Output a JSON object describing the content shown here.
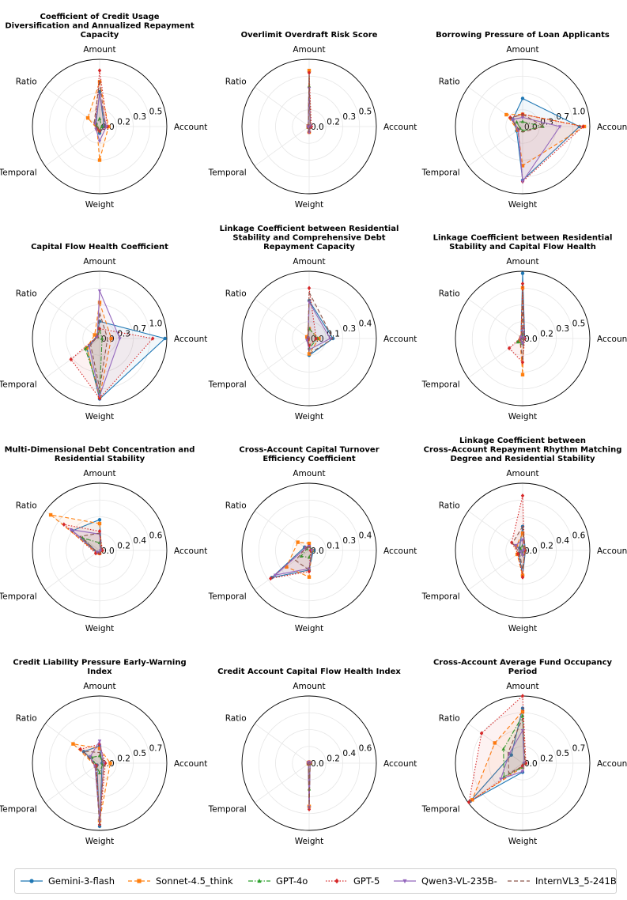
{
  "legend": {
    "series": [
      {
        "name": "Gemini-3-flash",
        "color": "#1f77b4",
        "dash": "solid",
        "marker": "circle"
      },
      {
        "name": "Sonnet-4.5_think",
        "color": "#ff7f0e",
        "dash": "dashed",
        "marker": "square"
      },
      {
        "name": "GPT-4o",
        "color": "#2ca02c",
        "dash": "dashdot",
        "marker": "triangle"
      },
      {
        "name": "GPT-5",
        "color": "#d62728",
        "dash": "dotted",
        "marker": "diamond"
      },
      {
        "name": "Qwen3-VL-235B-",
        "color": "#9467bd",
        "dash": "solid",
        "marker": "triangle-down"
      },
      {
        "name": "InternVL3_5-241B",
        "color": "#8c564b",
        "dash": "dashed",
        "marker": "none"
      }
    ]
  },
  "chart_data": [
    {
      "type": "radar",
      "title": [
        "Coefficient of Credit Usage",
        "Diversification and Annualized Repayment",
        "Capacity"
      ],
      "axes": [
        "Amount",
        "Account",
        "Weight",
        "Temporal",
        "Ratio"
      ],
      "ticks": [
        "0.0",
        "0.2",
        "0.3",
        "0.5"
      ],
      "rmax": 0.6,
      "series": [
        [
          0.31,
          0.04,
          0.06,
          0.03,
          0.04
        ],
        [
          0.4,
          0.08,
          0.3,
          0.03,
          0.13
        ],
        [
          0.07,
          0.02,
          0.04,
          0.02,
          0.04
        ],
        [
          0.5,
          0.07,
          0.04,
          0.03,
          0.05
        ],
        [
          0.28,
          0.06,
          0.13,
          0.04,
          0.05
        ],
        [
          0.41,
          0.05,
          0.04,
          0.03,
          0.06
        ]
      ]
    },
    {
      "type": "radar",
      "title": [
        "Overlimit Overdraft Risk Score"
      ],
      "axes": [
        "Amount",
        "Account",
        "Weight",
        "Temporal",
        "Ratio"
      ],
      "ticks": [
        "0.0",
        "0.2",
        "0.3",
        "0.5"
      ],
      "rmax": 0.6,
      "series": [
        [
          0.49,
          0.01,
          0.05,
          0.01,
          0.01
        ],
        [
          0.5,
          0.01,
          0.05,
          0.01,
          0.01
        ],
        [
          0.36,
          0.01,
          0.04,
          0.01,
          0.01
        ],
        [
          0.48,
          0.02,
          0.05,
          0.01,
          0.01
        ],
        [
          0.34,
          0.01,
          0.05,
          0.01,
          0.01
        ],
        [
          0.46,
          0.01,
          0.05,
          0.01,
          0.01
        ]
      ]
    },
    {
      "type": "radar",
      "title": [
        "Borrowing Pressure of Loan Applicants"
      ],
      "axes": [
        "Amount",
        "Account",
        "Weight",
        "Temporal",
        "Ratio"
      ],
      "ticks": [
        "0.0",
        "0.3",
        "0.7",
        "1.0"
      ],
      "rmax": 1.1,
      "series": [
        [
          0.46,
          0.93,
          0.88,
          0.12,
          0.2
        ],
        [
          0.2,
          1.01,
          0.64,
          0.1,
          0.33
        ],
        [
          0.08,
          0.33,
          0.07,
          0.05,
          0.12
        ],
        [
          0.2,
          0.99,
          0.9,
          0.09,
          0.25
        ],
        [
          0.15,
          0.61,
          0.9,
          0.09,
          0.2
        ],
        [
          0.2,
          0.35,
          0.09,
          0.08,
          0.24
        ]
      ]
    },
    {
      "type": "radar",
      "title": [
        "Capital Flow Health Coefficient"
      ],
      "axes": [
        "Amount",
        "Account",
        "Weight",
        "Temporal",
        "Ratio"
      ],
      "ticks": [
        "0.0",
        "0.3",
        "0.7",
        "1.0"
      ],
      "rmax": 1.1,
      "series": [
        [
          0.28,
          1.07,
          0.99,
          0.26,
          0.06
        ],
        [
          0.59,
          0.19,
          0.95,
          0.26,
          0.1
        ],
        [
          0.15,
          0.04,
          0.88,
          0.29,
          0.04
        ],
        [
          0.16,
          0.87,
          0.98,
          0.58,
          0.05
        ],
        [
          0.78,
          0.33,
          0.94,
          0.21,
          0.05
        ],
        [
          0.42,
          0.13,
          0.82,
          0.18,
          0.05
        ]
      ]
    },
    {
      "type": "radar",
      "title": [
        "Linkage Coefficient between Residential",
        "Stability and Comprehensive Debt",
        "Repayment Capacity"
      ],
      "axes": [
        "Amount",
        "Account",
        "Weight",
        "Temporal",
        "Ratio"
      ],
      "ticks": [
        "0.0",
        "0.1",
        "0.3",
        "0.4"
      ],
      "rmax": 0.48,
      "series": [
        [
          0.27,
          0.17,
          0.12,
          0.01,
          0.01
        ],
        [
          0.07,
          0.07,
          0.11,
          0.01,
          0.02
        ],
        [
          0.07,
          0.06,
          0.07,
          0.01,
          0.01
        ],
        [
          0.36,
          0.05,
          0.05,
          0.01,
          0.01
        ],
        [
          0.26,
          0.15,
          0.08,
          0.02,
          0.01
        ],
        [
          0.33,
          0.17,
          0.11,
          0.01,
          0.01
        ]
      ]
    },
    {
      "type": "radar",
      "title": [
        "Linkage Coefficient between Residential",
        "Stability and Capital Flow Health"
      ],
      "axes": [
        "Amount",
        "Account",
        "Weight",
        "Temporal",
        "Ratio"
      ],
      "ticks": [
        "0.0",
        "0.2",
        "0.3",
        "0.5"
      ],
      "rmax": 0.65,
      "series": [
        [
          0.63,
          0.02,
          0.04,
          0.04,
          0.02
        ],
        [
          0.49,
          0.01,
          0.35,
          0.03,
          0.02
        ],
        [
          0.04,
          0.01,
          0.05,
          0.06,
          0.01
        ],
        [
          0.53,
          0.02,
          0.23,
          0.16,
          0.02
        ],
        [
          0.1,
          0.01,
          0.05,
          0.02,
          0.02
        ],
        [
          0.44,
          0.01,
          0.22,
          0.03,
          0.01
        ]
      ]
    },
    {
      "type": "radar",
      "title": [
        "Multi-Dimensional Debt Concentration and",
        "Residential Stability"
      ],
      "axes": [
        "Amount",
        "Account",
        "Weight",
        "Temporal",
        "Ratio"
      ],
      "ticks": [
        "0.0",
        "0.2",
        "0.4",
        "0.6"
      ],
      "rmax": 0.7,
      "series": [
        [
          0.32,
          0.02,
          0.03,
          0.04,
          0.35
        ],
        [
          0.28,
          0.02,
          0.03,
          0.04,
          0.63
        ],
        [
          0.08,
          0.01,
          0.02,
          0.03,
          0.22
        ],
        [
          0.2,
          0.03,
          0.03,
          0.05,
          0.46
        ],
        [
          0.17,
          0.01,
          0.02,
          0.03,
          0.37
        ],
        [
          0.18,
          0.02,
          0.03,
          0.03,
          0.25
        ]
      ]
    },
    {
      "type": "radar",
      "title": [
        "Cross-Account Capital Turnover",
        "Efficiency Coefficient"
      ],
      "axes": [
        "Amount",
        "Account",
        "Weight",
        "Temporal",
        "Ratio"
      ],
      "ticks": [
        "0.0",
        "0.1",
        "0.3",
        "0.4"
      ],
      "rmax": 0.48,
      "series": [
        [
          0.03,
          0.03,
          0.14,
          0.33,
          0.04
        ],
        [
          0.05,
          0.02,
          0.19,
          0.2,
          0.1
        ],
        [
          0.03,
          0.02,
          0.05,
          0.07,
          0.02
        ],
        [
          0.03,
          0.01,
          0.15,
          0.34,
          0.03
        ],
        [
          0.03,
          0.02,
          0.13,
          0.3,
          0.03
        ],
        [
          0.03,
          0.02,
          0.14,
          0.12,
          0.03
        ]
      ]
    },
    {
      "type": "radar",
      "title": [
        "Linkage Coefficient between",
        "Cross-Account Repayment Rhythm Matching",
        "Degree and Residential Stability"
      ],
      "axes": [
        "Amount",
        "Account",
        "Weight",
        "Temporal",
        "Ratio"
      ],
      "ticks": [
        "0.0",
        "0.2",
        "0.4",
        "0.6"
      ],
      "rmax": 0.7,
      "series": [
        [
          0.25,
          0.03,
          0.26,
          0.05,
          0.04
        ],
        [
          0.18,
          0.02,
          0.26,
          0.07,
          0.08
        ],
        [
          0.05,
          0.01,
          0.04,
          0.02,
          0.03
        ],
        [
          0.57,
          0.02,
          0.28,
          0.06,
          0.14
        ],
        [
          0.11,
          0.01,
          0.05,
          0.02,
          0.09
        ],
        [
          0.25,
          0.03,
          0.2,
          0.04,
          0.13
        ]
      ]
    },
    {
      "type": "radar",
      "title": [
        "Credit Liability Pressure Early-Warning",
        "Index"
      ],
      "axes": [
        "Amount",
        "Account",
        "Weight",
        "Temporal",
        "Ratio"
      ],
      "ticks": [
        "0.0",
        "0.2",
        "0.5",
        "0.7"
      ],
      "rmax": 0.82,
      "series": [
        [
          0.21,
          0.03,
          0.77,
          0.04,
          0.24
        ],
        [
          0.18,
          0.13,
          0.7,
          0.06,
          0.4
        ],
        [
          0.09,
          0.04,
          0.12,
          0.05,
          0.12
        ],
        [
          0.23,
          0.07,
          0.75,
          0.05,
          0.29
        ],
        [
          0.27,
          0.05,
          0.7,
          0.07,
          0.14
        ],
        [
          0.13,
          0.05,
          0.78,
          0.06,
          0.25
        ]
      ]
    },
    {
      "type": "radar",
      "title": [
        "Credit Account Capital Flow Health Index"
      ],
      "axes": [
        "Amount",
        "Account",
        "Weight",
        "Temporal",
        "Ratio"
      ],
      "ticks": [
        "0.0",
        "0.2",
        "0.4",
        "0.6"
      ],
      "rmax": 0.7,
      "series": [
        [
          0.01,
          0.01,
          0.45,
          0.01,
          0.01
        ],
        [
          0.01,
          0.01,
          0.45,
          0.01,
          0.01
        ],
        [
          0.01,
          0.01,
          0.27,
          0.01,
          0.01
        ],
        [
          0.01,
          0.01,
          0.48,
          0.01,
          0.01
        ],
        [
          0.01,
          0.01,
          0.46,
          0.01,
          0.01
        ],
        [
          0.01,
          0.01,
          0.47,
          0.01,
          0.01
        ]
      ]
    },
    {
      "type": "radar",
      "title": [
        "Cross-Account Average Fund Occupancy",
        "Period"
      ],
      "axes": [
        "Amount",
        "Account",
        "Weight",
        "Temporal",
        "Ratio"
      ],
      "ticks": [
        "0.0",
        "0.2",
        "0.5",
        "0.7"
      ],
      "rmax": 0.82,
      "series": [
        [
          0.67,
          0.02,
          0.11,
          0.79,
          0.17
        ],
        [
          0.63,
          0.03,
          0.05,
          0.76,
          0.42
        ],
        [
          0.58,
          0.02,
          0.05,
          0.28,
          0.29
        ],
        [
          0.84,
          0.04,
          0.03,
          0.81,
          0.62
        ],
        [
          0.4,
          0.02,
          0.1,
          0.33,
          0.2
        ],
        [
          0.55,
          0.03,
          0.04,
          0.21,
          0.22
        ]
      ]
    }
  ]
}
